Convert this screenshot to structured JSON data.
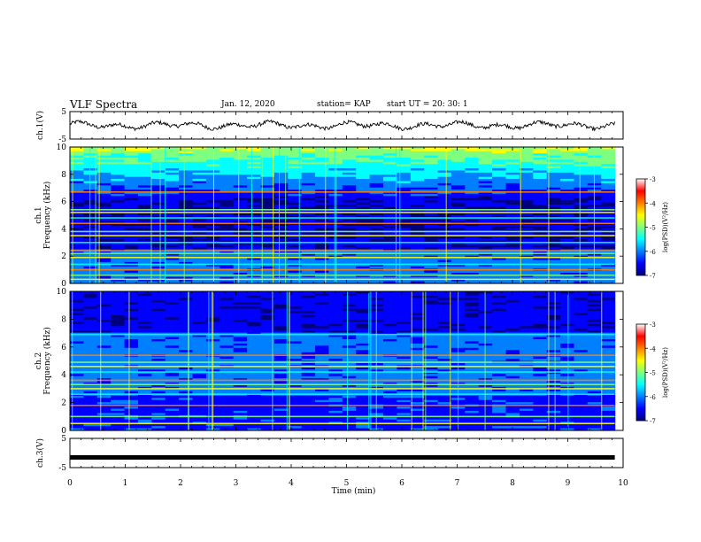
{
  "header": {
    "title": "VLF Spectra",
    "date": "Jan. 12, 2020",
    "station": "station= KAP",
    "start": "start UT = 20: 30: 1"
  },
  "colors": {
    "colormap": [
      "#00007f",
      "#0000ff",
      "#007fff",
      "#00ffff",
      "#7fff7f",
      "#ffff00",
      "#ff7f00",
      "#ff0000",
      "#ffffff"
    ],
    "trace": "#000000"
  },
  "chart_data": [
    {
      "type": "line",
      "ylabel": "ch.1(V)",
      "ylim": [
        -5,
        5
      ],
      "yticks": [
        "5",
        "-5"
      ],
      "series": [
        {
          "x_range": [
            0,
            9.85
          ],
          "approx_mean": 0,
          "approx_amplitude": 1.5,
          "note": "noisy oscillating waveform"
        }
      ]
    },
    {
      "type": "heatmap",
      "ylabel_top": "ch.1",
      "ylabel": "Frequency (kHz)",
      "ylim": [
        0,
        10
      ],
      "yticks": [
        "0",
        "2",
        "4",
        "6",
        "8",
        "10"
      ],
      "colorbar": {
        "label": "log(PSD)(V²/Hz)",
        "ticks": [
          "-3",
          "-4",
          "-5",
          "-6",
          "-7"
        ],
        "range": [
          -7,
          -3
        ]
      },
      "bands_khz": [
        0.3,
        0.6,
        1.0,
        1.4,
        1.9,
        2.2,
        2.4,
        3.0,
        3.5,
        3.8,
        4.4,
        4.8,
        5.2,
        5.4,
        6.7
      ]
    },
    {
      "type": "heatmap",
      "ylabel_top": "ch.2",
      "ylabel": "Frequency (kHz)",
      "ylim": [
        0,
        10
      ],
      "yticks": [
        "0",
        "2",
        "4",
        "6",
        "8",
        "10"
      ],
      "colorbar": {
        "label": "log(PSD)(V²/Hz)",
        "ticks": [
          "-3",
          "-4",
          "-5",
          "-6",
          "-7"
        ],
        "range": [
          -7,
          -3
        ]
      },
      "bands_khz": [
        0.5,
        1.0,
        1.8,
        2.6,
        3.0,
        3.3,
        3.6,
        4.2,
        4.6,
        4.9,
        5.4,
        6.9
      ]
    },
    {
      "type": "line",
      "ylabel": "ch.3(V)",
      "ylim": [
        -5,
        5
      ],
      "yticks": [
        "5",
        "-5"
      ],
      "series": [
        {
          "x_range": [
            0,
            9.85
          ],
          "approx_value": -1.5,
          "note": "flat trace"
        }
      ]
    }
  ],
  "xaxis": {
    "label": "Time (min)",
    "ticks": [
      "0",
      "1",
      "2",
      "3",
      "4",
      "5",
      "6",
      "7",
      "8",
      "9",
      "10"
    ],
    "xlim": [
      0,
      10
    ],
    "data_end": 9.85
  }
}
